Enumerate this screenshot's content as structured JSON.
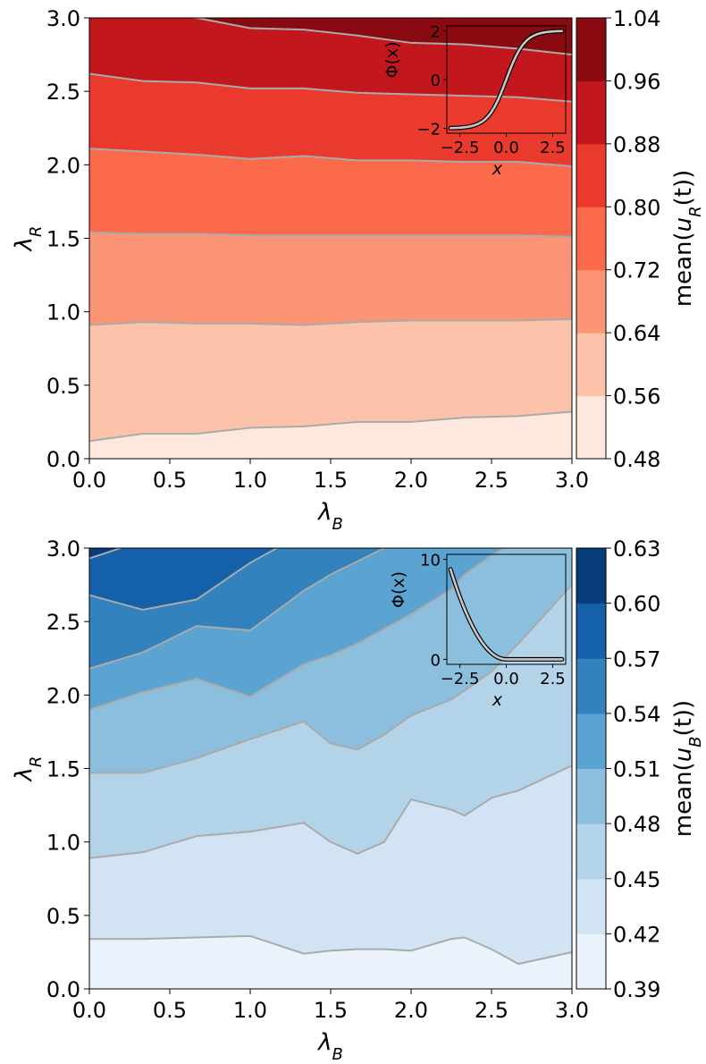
{
  "chart_data": [
    {
      "type": "contourf",
      "xlabel": "λ",
      "xlabel_sub": "B",
      "ylabel": "λ",
      "ylabel_sub": "R",
      "xlim": [
        0,
        3
      ],
      "ylim": [
        0,
        3
      ],
      "xticks": [
        "0.0",
        "0.5",
        "1.0",
        "1.5",
        "2.0",
        "2.5",
        "3.0"
      ],
      "yticks": [
        "0.0",
        "0.5",
        "1.0",
        "1.5",
        "2.0",
        "2.5",
        "3.0"
      ],
      "colorbar": {
        "label_prefix": "mean(",
        "label_var": "u",
        "label_sub": "R",
        "label_suffix": "(t))",
        "levels": [
          "0.48",
          "0.56",
          "0.64",
          "0.72",
          "0.80",
          "0.88",
          "0.96",
          "1.04"
        ],
        "colors": [
          "#fee8dd",
          "#fcc2aa",
          "#fc9576",
          "#fb6b4b",
          "#ea3a2d",
          "#c2171c",
          "#8a0a12"
        ]
      },
      "contour_color": "#aaaaaa",
      "x": [
        0.0,
        0.333,
        0.667,
        1.0,
        1.333,
        1.667,
        2.0,
        2.333,
        2.667,
        3.0
      ],
      "boundaries": [
        {
          "level": "0.56",
          "y": [
            0.12,
            0.17,
            0.17,
            0.21,
            0.22,
            0.25,
            0.25,
            0.28,
            0.29,
            0.32
          ]
        },
        {
          "level": "0.64",
          "y": [
            0.91,
            0.93,
            0.92,
            0.92,
            0.91,
            0.93,
            0.94,
            0.94,
            0.94,
            0.95
          ]
        },
        {
          "level": "0.72",
          "y": [
            1.54,
            1.53,
            1.53,
            1.52,
            1.52,
            1.52,
            1.52,
            1.52,
            1.52,
            1.51
          ]
        },
        {
          "level": "0.80",
          "y": [
            2.11,
            2.09,
            2.07,
            2.04,
            2.06,
            2.03,
            2.03,
            2.02,
            2.02,
            1.99
          ]
        },
        {
          "level": "0.88",
          "y": [
            2.62,
            2.57,
            2.56,
            2.52,
            2.52,
            2.49,
            2.48,
            2.47,
            2.46,
            2.43
          ]
        },
        {
          "level": "0.96",
          "y": [
            3.05,
            3.03,
            3.0,
            2.93,
            2.92,
            2.88,
            2.83,
            2.82,
            2.79,
            2.75
          ]
        }
      ],
      "inset": {
        "xlabel": "x",
        "ylabel": "Φ(x)",
        "xlim": [
          -3.2,
          3.2
        ],
        "ylim": [
          -2.2,
          2.2
        ],
        "xticks": [
          "−2.5",
          "0.0",
          "2.5"
        ],
        "xtick_values": [
          -2.5,
          0.0,
          2.5
        ],
        "yticks": [
          "−2",
          "0",
          "2"
        ],
        "ytick_values": [
          -2,
          0,
          2
        ],
        "function": "2*tanh(x)"
      }
    },
    {
      "type": "contourf",
      "xlabel": "λ",
      "xlabel_sub": "B",
      "ylabel": "λ",
      "ylabel_sub": "R",
      "xlim": [
        0,
        3
      ],
      "ylim": [
        0,
        3
      ],
      "xticks": [
        "0.0",
        "0.5",
        "1.0",
        "1.5",
        "2.0",
        "2.5",
        "3.0"
      ],
      "yticks": [
        "0.0",
        "0.5",
        "1.0",
        "1.5",
        "2.0",
        "2.5",
        "3.0"
      ],
      "colorbar": {
        "label_prefix": "mean(",
        "label_var": "u",
        "label_sub": "B",
        "label_suffix": "(t))",
        "levels": [
          "0.39",
          "0.42",
          "0.45",
          "0.48",
          "0.51",
          "0.54",
          "0.57",
          "0.60",
          "0.63"
        ],
        "colors": [
          "#eaf3fb",
          "#d2e3f3",
          "#b3d3e9",
          "#8bbfdd",
          "#5ba3d0",
          "#3282be",
          "#1561a9",
          "#083c7d"
        ]
      },
      "contour_color": "#aaaaaa",
      "x": [
        0.0,
        0.333,
        0.667,
        1.0,
        1.333,
        1.5,
        1.667,
        1.833,
        2.0,
        2.25,
        2.333,
        2.5,
        2.667,
        3.0
      ],
      "boundaries": [
        {
          "level": "0.42",
          "y": [
            0.34,
            0.34,
            0.35,
            0.36,
            0.24,
            0.26,
            0.27,
            0.27,
            0.26,
            0.34,
            0.35,
            0.27,
            0.17,
            0.25
          ]
        },
        {
          "level": "0.45",
          "y": [
            0.89,
            0.93,
            1.04,
            1.07,
            1.13,
            1.0,
            0.92,
            1.0,
            1.29,
            1.22,
            1.18,
            1.3,
            1.35,
            1.52
          ]
        },
        {
          "level": "0.48",
          "y": [
            1.47,
            1.47,
            1.57,
            1.7,
            1.82,
            1.67,
            1.63,
            1.73,
            1.86,
            1.97,
            2.03,
            2.16,
            2.35,
            2.75
          ]
        },
        {
          "level": "0.51",
          "y": [
            1.9,
            2.02,
            2.11,
            1.99,
            2.21,
            2.27,
            2.35,
            2.45,
            2.55,
            2.72,
            2.82,
            2.95,
            3.05,
            3.2
          ]
        },
        {
          "level": "0.54",
          "y": [
            2.18,
            2.29,
            2.47,
            2.44,
            2.71,
            2.82,
            2.91,
            3.0,
            3.1,
            3.2,
            3.2,
            3.2,
            3.2,
            3.2
          ]
        },
        {
          "level": "0.57",
          "y": [
            2.68,
            2.58,
            2.65,
            2.9,
            3.1,
            3.2,
            3.2,
            3.2,
            3.2,
            3.2,
            3.2,
            3.2,
            3.2,
            3.2
          ]
        },
        {
          "level": "0.60",
          "y": [
            2.93,
            3.05,
            3.2,
            3.2,
            3.2,
            3.2,
            3.2,
            3.2,
            3.2,
            3.2,
            3.2,
            3.2,
            3.2,
            3.2
          ]
        }
      ],
      "inset": {
        "xlabel": "x",
        "ylabel": "Φ(x)",
        "xlim": [
          -3.2,
          3.2
        ],
        "ylim": [
          -0.5,
          10.5
        ],
        "xticks": [
          "−2.5",
          "0.0",
          "2.5"
        ],
        "xtick_values": [
          -2.5,
          0.0,
          2.5
        ],
        "yticks": [
          "0",
          "10"
        ],
        "ytick_values": [
          0,
          10
        ],
        "function": "x<0 ? x^2 : 0"
      }
    }
  ]
}
